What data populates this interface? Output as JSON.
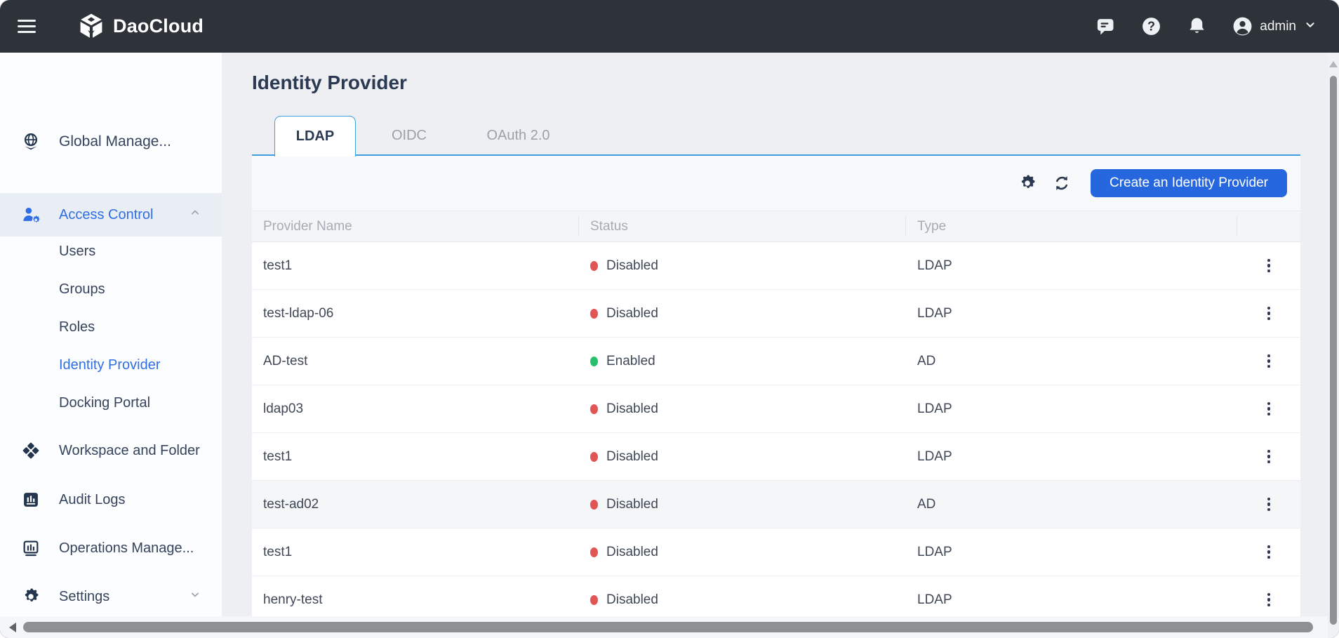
{
  "colors": {
    "topbar_bg": "#2e333a",
    "accent_blue": "#2667df",
    "sidebar_active_blue": "#2f6fe4",
    "tab_underline_blue": "#3f9fe0",
    "status_red": "#e15555",
    "status_green": "#27c06d"
  },
  "icons": {
    "menu": "hamburger-three-lines",
    "brand_logo": "cube",
    "messages": "speech-bubble",
    "help": "question-circle",
    "notifications": "bell",
    "account": "avatar-person",
    "account_expand": "chevron-down",
    "global": "globe",
    "access_control": "user-gear",
    "workspace": "pinwheel-diamond",
    "audit": "bar-chart-square",
    "operations": "bar-chart-monitor",
    "settings": "gear",
    "toolbar": [
      "gear",
      "refresh"
    ],
    "row_action": "kebab-vertical-dots"
  },
  "topbar": {
    "brand": "DaoCloud",
    "user": "admin"
  },
  "sidebar": {
    "global_label": "Global Manage...",
    "access_control": {
      "label": "Access Control",
      "children": [
        {
          "label": "Users",
          "cls": ""
        },
        {
          "label": "Groups",
          "cls": ""
        },
        {
          "label": "Roles",
          "cls": ""
        },
        {
          "label": "Identity Provider",
          "cls": "active"
        },
        {
          "label": "Docking Portal",
          "cls": ""
        }
      ]
    },
    "workspace_label": "Workspace and Folder",
    "audit_label": "Audit Logs",
    "operations_label": "Operations Manage...",
    "settings_label": "Settings"
  },
  "main": {
    "title": "Identity Provider",
    "tabs": [
      {
        "label": "LDAP"
      },
      {
        "label": "OIDC"
      },
      {
        "label": "OAuth 2.0"
      }
    ],
    "active_tab": "LDAP",
    "create_button": "Create an Identity Provider",
    "table": {
      "columns": [
        "Provider Name",
        "Status",
        "Type"
      ],
      "rows": [
        {
          "name": "test1",
          "status": "Disabled",
          "status_class": "red",
          "type": "LDAP",
          "row_class": ""
        },
        {
          "name": "test-ldap-06",
          "status": "Disabled",
          "status_class": "red",
          "type": "LDAP",
          "row_class": ""
        },
        {
          "name": "AD-test",
          "status": "Enabled",
          "status_class": "green",
          "type": "AD",
          "row_class": ""
        },
        {
          "name": "ldap03",
          "status": "Disabled",
          "status_class": "red",
          "type": "LDAP",
          "row_class": ""
        },
        {
          "name": "test1",
          "status": "Disabled",
          "status_class": "red",
          "type": "LDAP",
          "row_class": ""
        },
        {
          "name": "test-ad02",
          "status": "Disabled",
          "status_class": "red",
          "type": "AD",
          "row_class": "hovered"
        },
        {
          "name": "test1",
          "status": "Disabled",
          "status_class": "red",
          "type": "LDAP",
          "row_class": ""
        },
        {
          "name": "henry-test",
          "status": "Disabled",
          "status_class": "red",
          "type": "LDAP",
          "row_class": ""
        }
      ]
    }
  }
}
